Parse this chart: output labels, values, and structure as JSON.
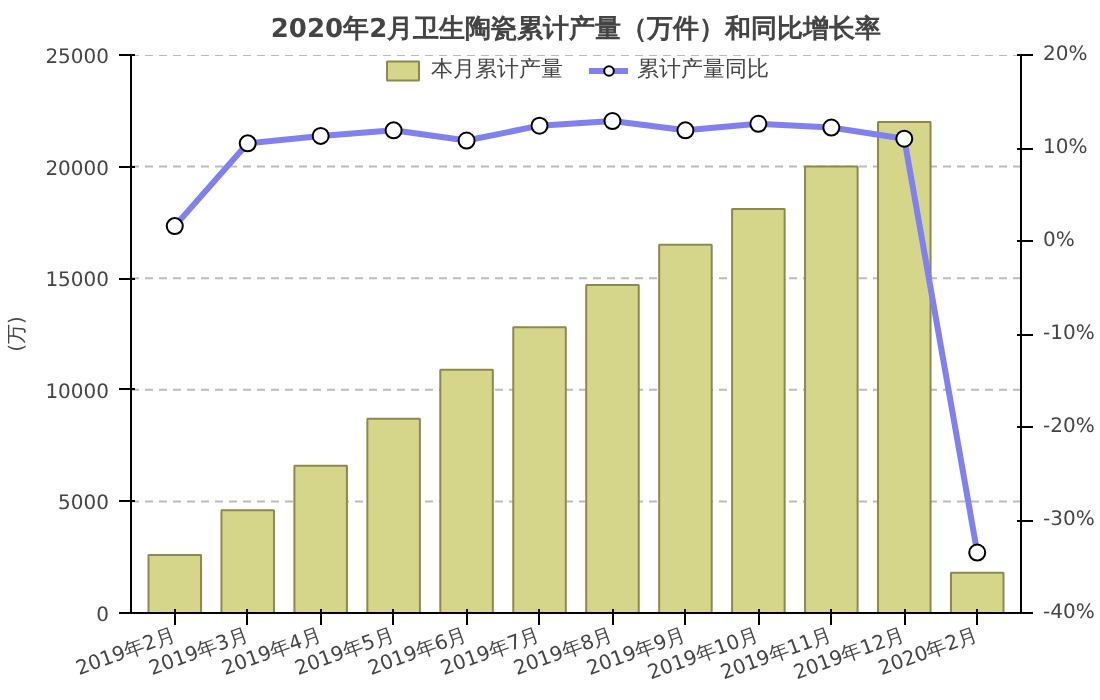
{
  "chart_data": {
    "type": "bar",
    "title": "2020年2月卫生陶瓷累计产量（万件）和同比增长率",
    "ylabel": "(万)",
    "categories": [
      "2019年2月",
      "2019年3月",
      "2019年4月",
      "2019年5月",
      "2019年6月",
      "2019年7月",
      "2019年8月",
      "2019年9月",
      "2019年10月",
      "2019年11月",
      "2019年12月",
      "2020年2月"
    ],
    "series": [
      {
        "name": "本月累计产量",
        "color": "#d6d68a",
        "values": [
          2600,
          4600,
          6600,
          8700,
          10900,
          12800,
          14700,
          16500,
          18100,
          20000,
          22000,
          1800
        ]
      },
      {
        "name": "累计产量同比",
        "type": "line",
        "axis": "y2",
        "color": "#8080f0",
        "marker": "circle",
        "values": [
          1.6,
          10.5,
          11.3,
          11.9,
          10.8,
          12.4,
          12.9,
          11.9,
          12.6,
          12.2,
          11.0,
          -33.5
        ]
      }
    ],
    "ylim": [
      0,
      25000
    ],
    "yticks": [
      0,
      5000,
      10000,
      15000,
      20000,
      25000
    ],
    "y2lim": [
      -40,
      20
    ],
    "y2ticks": [
      {
        "value": -40,
        "label": "-40%"
      },
      {
        "value": -30,
        "label": "-30%"
      },
      {
        "value": -20,
        "label": "-20%"
      },
      {
        "value": -10,
        "label": "-10%"
      },
      {
        "value": 0,
        "label": "0%"
      },
      {
        "value": 10,
        "label": "10%"
      },
      {
        "value": 20,
        "label": "20%"
      }
    ],
    "grid": "y",
    "legend": "top"
  }
}
